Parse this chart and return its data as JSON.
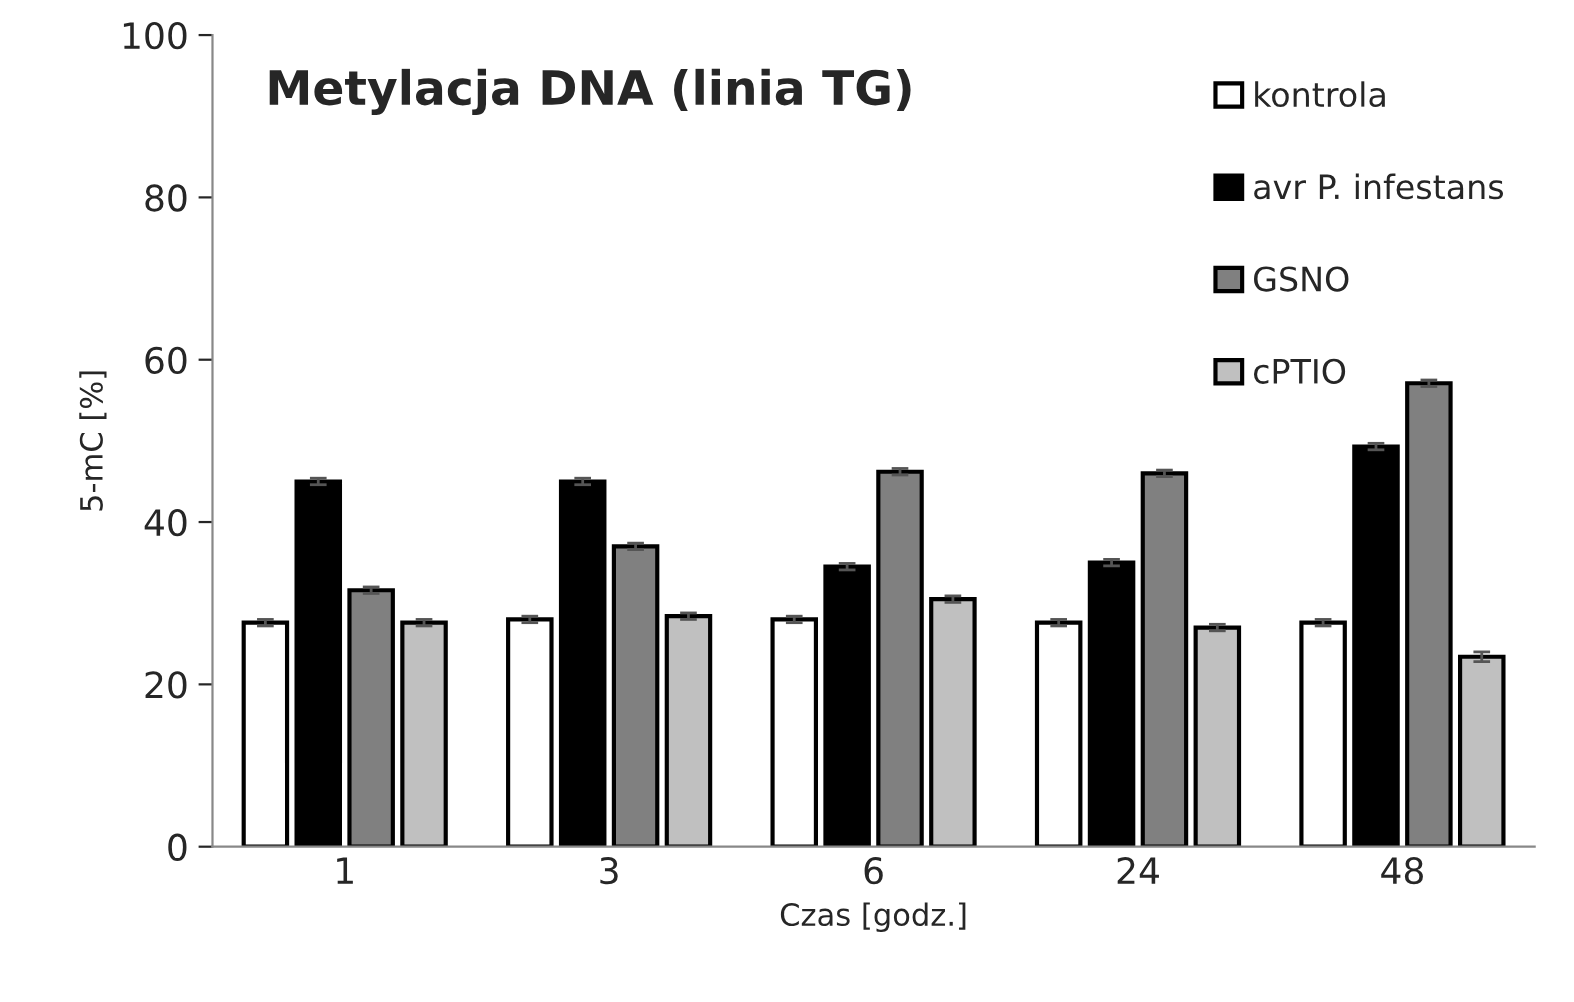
{
  "chart_data": {
    "type": "bar",
    "title": "Metylacja DNA (linia TG)",
    "xlabel": "Czas [godz.]",
    "ylabel": "5-mC [%]",
    "categories": [
      "1",
      "3",
      "6",
      "24",
      "48"
    ],
    "series": [
      {
        "name": "kontrola",
        "color": "#ffffff",
        "values": [
          27.6,
          28,
          28,
          27.6,
          27.6
        ],
        "errors": [
          0.4,
          0.4,
          0.4,
          0.4,
          0.4
        ]
      },
      {
        "name": "avr P. infestans",
        "color": "#000000",
        "values": [
          45,
          45,
          34.5,
          35,
          49.3
        ],
        "errors": [
          0.4,
          0.4,
          0.4,
          0.4,
          0.4
        ]
      },
      {
        "name": "GSNO",
        "color": "#808080",
        "values": [
          31.6,
          37,
          46.2,
          46,
          57.1
        ],
        "errors": [
          0.4,
          0.4,
          0.4,
          0.4,
          0.4
        ]
      },
      {
        "name": "cPTIO",
        "color": "#c0c0c0",
        "values": [
          27.6,
          28.4,
          30.5,
          27,
          23.4
        ],
        "errors": [
          0.4,
          0.4,
          0.4,
          0.4,
          0.6
        ]
      }
    ],
    "ylim": [
      0,
      100
    ],
    "yticks": [
      0,
      20,
      40,
      60,
      80,
      100
    ],
    "grid": false,
    "legend": "top right"
  }
}
